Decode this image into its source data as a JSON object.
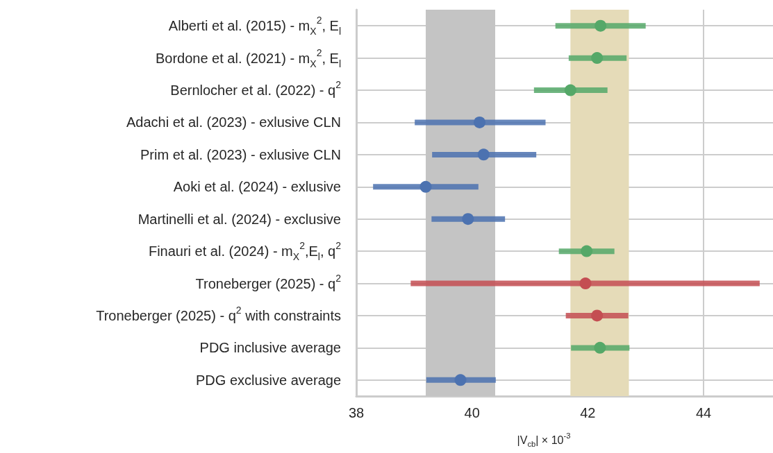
{
  "chart_data": {
    "type": "scatter",
    "orientation": "horizontal",
    "xlabel": "|V$_{cb}$| × 10$^{-3}$",
    "categories": [
      "Alberti et al. (2015) - m$_{X}$$^{2}$, E$_{l}$",
      "Bordone et al. (2021) - m$_{X}$$^{2}$, E$_{l}$",
      "Bernlocher et al. (2022) - q$^{2}$",
      "Adachi et al. (2023) - exlusive CLN",
      "Prim et al. (2023) - exlusive CLN",
      "Aoki et al. (2024) - exlusive",
      "Martinelli et al. (2024) - exclusive",
      "Finauri et al. (2024) - m$_{X}$$^{2}$,E$_{l}$, q$^{2}$",
      "Troneberger (2025) - q$^{2}$",
      "Troneberger (2025) - q$^{2}$ with constraints",
      "PDG inclusive average",
      "PDG exclusive average"
    ],
    "values": [
      42.22,
      42.16,
      41.7,
      40.13,
      40.2,
      39.2,
      39.93,
      41.98,
      41.96,
      42.16,
      42.21,
      39.8
    ],
    "errors": [
      [
        41.44,
        43.0
      ],
      [
        41.67,
        42.67
      ],
      [
        41.07,
        42.34
      ],
      [
        39.01,
        41.27
      ],
      [
        39.31,
        41.11
      ],
      [
        38.29,
        40.11
      ],
      [
        39.3,
        40.57
      ],
      [
        41.5,
        42.46
      ],
      [
        38.94,
        44.97
      ],
      [
        41.62,
        42.7
      ],
      [
        41.71,
        42.72
      ],
      [
        39.21,
        40.41
      ]
    ],
    "colors": [
      "#55a868",
      "#55a868",
      "#55a868",
      "#4c72b0",
      "#4c72b0",
      "#4c72b0",
      "#4c72b0",
      "#55a868",
      "#c44e52",
      "#c44e52",
      "#55a868",
      "#4c72b0"
    ],
    "xlim": [
      38,
      45.2
    ],
    "xticks": [
      38,
      40,
      42,
      44
    ],
    "bands": [
      {
        "axis": "x",
        "from": 39.2,
        "to": 40.4,
        "color": "#c4c4c4"
      },
      {
        "axis": "x",
        "from": 41.7,
        "to": 42.71,
        "color": "#e5dbb8"
      }
    ],
    "grid": true,
    "marker": "circle"
  }
}
